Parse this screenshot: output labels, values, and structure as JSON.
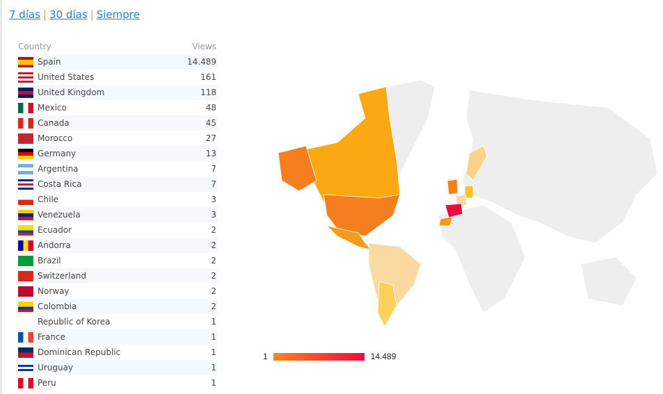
{
  "periods": [
    "7 días",
    "30 días",
    "Siempre"
  ],
  "table": {
    "headers": {
      "country": "Country",
      "views": "Views"
    },
    "rows": [
      {
        "country": "Spain",
        "views": "14.489",
        "flag": [
          "#c60b1e",
          "#ffc400",
          "#ffc400",
          "#c60b1e"
        ]
      },
      {
        "country": "United States",
        "views": "161",
        "flag": [
          "#b22234",
          "#fff",
          "#b22234",
          "#fff",
          "#b22234"
        ]
      },
      {
        "country": "United Kingdom",
        "views": "118",
        "flag": [
          "#012169",
          "#c8102e",
          "#012169"
        ]
      },
      {
        "country": "Mexico",
        "views": "48",
        "flag": [
          "v",
          "#006847",
          "#fff",
          "#ce1126"
        ]
      },
      {
        "country": "Canada",
        "views": "45",
        "flag": [
          "v",
          "#d52b1e",
          "#fff",
          "#d52b1e"
        ]
      },
      {
        "country": "Morocco",
        "views": "27",
        "flag": [
          "#c1272d"
        ]
      },
      {
        "country": "Germany",
        "views": "13",
        "flag": [
          "#000",
          "#dd0000",
          "#ffce00"
        ]
      },
      {
        "country": "Argentina",
        "views": "7",
        "flag": [
          "#74acdf",
          "#fff",
          "#74acdf"
        ]
      },
      {
        "country": "Costa Rica",
        "views": "7",
        "flag": [
          "#002b7f",
          "#fff",
          "#ce1126",
          "#fff",
          "#002b7f"
        ]
      },
      {
        "country": "Chile",
        "views": "3",
        "flag": [
          "#fff",
          "#d52b1e"
        ]
      },
      {
        "country": "Venezuela",
        "views": "3",
        "flag": [
          "#ffcc00",
          "#00247d",
          "#cf142b"
        ]
      },
      {
        "country": "Ecuador",
        "views": "2",
        "flag": [
          "#ffdd00",
          "#ffdd00",
          "#034ea2",
          "#ed1c24"
        ]
      },
      {
        "country": "Andorra",
        "views": "2",
        "flag": [
          "v",
          "#10069f",
          "#fedf00",
          "#d50032"
        ]
      },
      {
        "country": "Brazil",
        "views": "2",
        "flag": [
          "#009c3b"
        ]
      },
      {
        "country": "Switzerland",
        "views": "2",
        "flag": [
          "#da291c"
        ]
      },
      {
        "country": "Norway",
        "views": "2",
        "flag": [
          "#ba0c2f"
        ]
      },
      {
        "country": "Colombia",
        "views": "2",
        "flag": [
          "#fcd116",
          "#fcd116",
          "#003893",
          "#ce1126"
        ]
      },
      {
        "country": "Republic of Korea",
        "views": "1",
        "flag": [
          "#fff"
        ]
      },
      {
        "country": "France",
        "views": "1",
        "flag": [
          "v",
          "#0055a4",
          "#fff",
          "#ef4135"
        ]
      },
      {
        "country": "Dominican Republic",
        "views": "1",
        "flag": [
          "#002d62",
          "#ce1126"
        ]
      },
      {
        "country": "Uruguay",
        "views": "1",
        "flag": [
          "#fff",
          "#0038a8",
          "#fff",
          "#0038a8",
          "#fff"
        ]
      },
      {
        "country": "Peru",
        "views": "1",
        "flag": [
          "v",
          "#d91023",
          "#fff",
          "#d91023"
        ]
      }
    ]
  },
  "legend": {
    "min": "1",
    "max": "14.489",
    "colors": [
      "#f7861e",
      "#ec0a44"
    ]
  }
}
